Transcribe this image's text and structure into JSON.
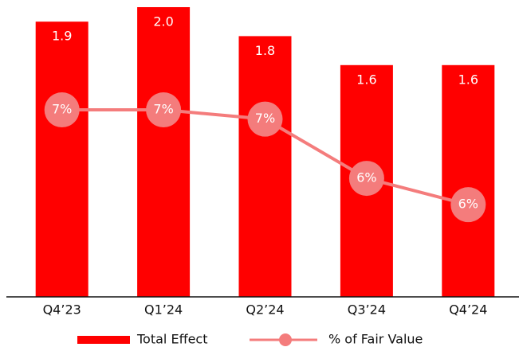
{
  "chart_data": {
    "type": "bar",
    "categories": [
      "Q4’23",
      "Q1’24",
      "Q2’24",
      "Q3’24",
      "Q4’24"
    ],
    "series": [
      {
        "name": "Total Effect",
        "type": "bar",
        "color": "#ff0000",
        "values": [
          1.9,
          2.0,
          1.8,
          1.6,
          1.6
        ],
        "value_labels": [
          "1.9",
          "2.0",
          "1.8",
          "1.6",
          "1.6"
        ]
      },
      {
        "name": "% of Fair Value",
        "type": "line",
        "axis": "y2",
        "color": "#f47c7c",
        "values": [
          7.04,
          7.04,
          6.9,
          6.0,
          5.6
        ],
        "value_labels": [
          "7%",
          "7%",
          "7%",
          "6%",
          "6%"
        ]
      }
    ],
    "ylim": [
      0,
      2.0
    ],
    "y2lim": [
      4.2,
      8.6
    ],
    "legend": "bottom"
  }
}
